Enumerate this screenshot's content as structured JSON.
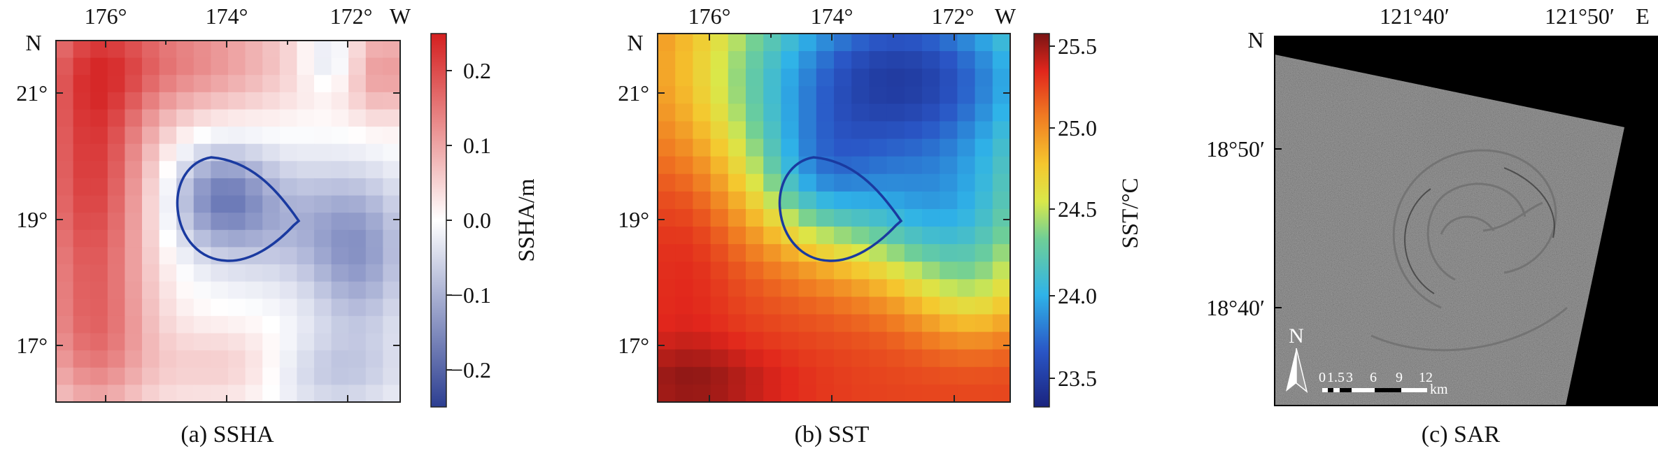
{
  "panels": {
    "ssha": {
      "caption": "(a) SSHA",
      "lon_ticks": [
        "176°",
        "174°",
        "172°"
      ],
      "lon_dir": "W",
      "lat_dir": "N",
      "lat_ticks": [
        "21°",
        "19°",
        "17°"
      ],
      "colorbar": {
        "label": "SSHA/m",
        "ticks": [
          "0.2",
          "0.1",
          "0.0",
          "−0.1",
          "−0.2"
        ],
        "range": [
          -0.25,
          0.25
        ],
        "colormap": "blue-white-red"
      }
    },
    "sst": {
      "caption": "(b) SST",
      "lon_ticks": [
        "176°",
        "174°",
        "172°"
      ],
      "lon_dir": "W",
      "lat_dir": "N",
      "lat_ticks": [
        "21°",
        "19°",
        "17°"
      ],
      "colorbar": {
        "label": "SST/°C",
        "ticks": [
          "25.5",
          "25.0",
          "24.5",
          "24.0",
          "23.5"
        ],
        "range": [
          23.35,
          25.65
        ],
        "colormap": "jet"
      }
    },
    "sar": {
      "caption": "(c) SAR",
      "lon_ticks": [
        "121°40′",
        "121°50′"
      ],
      "lon_dir": "E",
      "lat_dir": "N",
      "lat_ticks": [
        "18°50′",
        "18°40′"
      ],
      "north_arrow": "N",
      "scale_bar": {
        "ticks": [
          "0",
          "1.5",
          "3",
          "6",
          "9",
          "12"
        ],
        "unit": "km"
      }
    }
  },
  "colors": {
    "eddy_contour": "#1a3aa0",
    "ssha_neg": "#3b4fa3",
    "ssha_pos": "#d42a2a",
    "sar_background": "#000000"
  }
}
